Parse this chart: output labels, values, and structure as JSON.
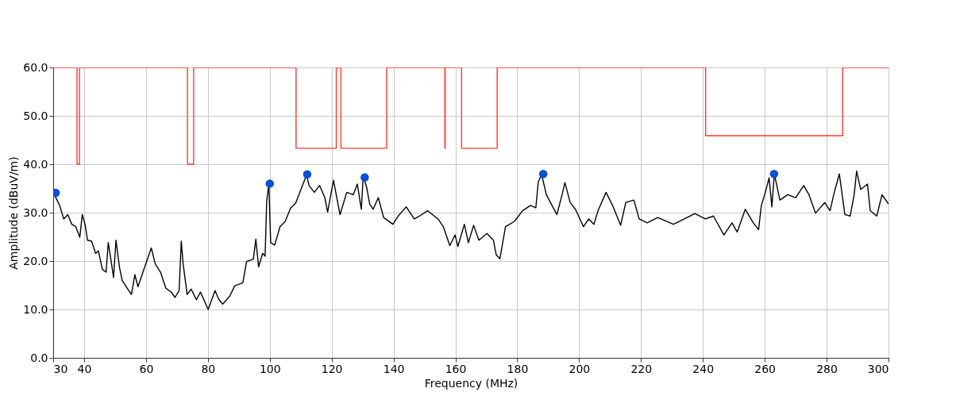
{
  "chart_data": {
    "type": "line",
    "xlabel": "Frequency (MHz)",
    "ylabel": "Amplitude (dBuV/m)",
    "xlim": [
      30,
      300
    ],
    "xticks": [
      30,
      40,
      60,
      80,
      100,
      120,
      140,
      160,
      180,
      200,
      220,
      240,
      260,
      280,
      300
    ],
    "ylim": [
      0,
      60
    ],
    "yticks": [
      {
        "value": 0,
        "label": "0.0"
      },
      {
        "value": 10,
        "label": "10.0"
      },
      {
        "value": 20,
        "label": "20.0"
      },
      {
        "value": 30,
        "label": "30.0"
      },
      {
        "value": 40,
        "label": "40.0"
      },
      {
        "value": 50,
        "label": "50.0"
      },
      {
        "value": 60,
        "label": "60.0"
      }
    ],
    "grid": true,
    "series": [
      {
        "color": "#000000",
        "marker": "none",
        "line_style": "solid",
        "x": [
          30,
          32.1,
          33.4,
          34.7,
          36,
          37.3,
          38.6,
          39.4,
          40.3,
          41.1,
          42.4,
          43.7,
          44.6,
          45.9,
          47.1,
          47.8,
          48.9,
          49.5,
          50.3,
          51.4,
          52.3,
          54.4,
          55.3,
          56.4,
          57.4,
          59.6,
          61.7,
          63,
          64.7,
          66.4,
          68.1,
          69.4,
          70.7,
          71.4,
          72,
          73.3,
          74.6,
          76.3,
          77.6,
          80.1,
          82.3,
          83.6,
          84.8,
          87,
          88.7,
          91.3,
          92.5,
          94.7,
          95.5,
          96.4,
          97.7,
          98.5,
          99,
          99.7,
          100.3,
          101.6,
          103.3,
          105,
          106.7,
          108.4,
          110.2,
          111.9,
          112.7,
          114.4,
          116.1,
          117.8,
          118.7,
          120.6,
          122.7,
          124.9,
          127,
          128.3,
          129.6,
          130.2,
          131.3,
          132.3,
          133.4,
          135.1,
          136.8,
          139.8,
          141.5,
          144.1,
          146.7,
          148.4,
          151,
          154.4,
          156.1,
          158.2,
          159.9,
          160.8,
          162.9,
          164.2,
          165.9,
          167.6,
          170.2,
          172.3,
          173.2,
          174.4,
          176.2,
          179.1,
          181.7,
          184.3,
          186,
          186.8,
          187.9,
          189.4,
          192.8,
          194.5,
          195.4,
          197.1,
          198.8,
          201.4,
          203.1,
          204.8,
          206.1,
          208.7,
          210.8,
          213.4,
          215.1,
          217.7,
          219.4,
          222,
          225.4,
          230.5,
          234,
          237.4,
          240.8,
          243.4,
          246.8,
          249.4,
          251.1,
          253.7,
          256.3,
          258,
          258.9,
          260.1,
          261.4,
          262.3,
          263.1,
          264.9,
          267.4,
          270,
          272.6,
          274.3,
          276.4,
          279.4,
          281.1,
          282.4,
          284.1,
          285.9,
          287.6,
          288.9,
          289.7,
          291,
          293.2,
          294.1,
          296.2,
          297.9,
          300
        ],
        "values": [
          34.2,
          31.5,
          28.7,
          29.6,
          27.6,
          27.1,
          24.9,
          29.6,
          27.6,
          24.3,
          24.1,
          21.6,
          22.1,
          18.3,
          17.7,
          23.8,
          19.3,
          16.6,
          24.3,
          18.8,
          16.0,
          13.9,
          13.1,
          17.2,
          14.7,
          18.8,
          22.7,
          19.4,
          17.7,
          14.4,
          13.6,
          12.5,
          13.9,
          24.1,
          19.4,
          13.1,
          14.2,
          12.0,
          13.6,
          10.0,
          13.9,
          12.0,
          11.1,
          12.7,
          14.9,
          15.5,
          19.9,
          20.4,
          24.5,
          18.8,
          21.6,
          21.0,
          32.3,
          35.9,
          23.8,
          23.3,
          27.1,
          28.2,
          30.9,
          32.0,
          35.0,
          37.8,
          35.6,
          34.2,
          35.6,
          33.1,
          30.1,
          36.7,
          29.6,
          34.2,
          33.7,
          35.9,
          30.7,
          37.5,
          35.3,
          31.8,
          30.7,
          33.1,
          29.0,
          27.6,
          29.3,
          31.2,
          28.7,
          29.3,
          30.4,
          28.7,
          27.1,
          23.2,
          25.4,
          23.0,
          27.6,
          23.8,
          27.4,
          24.3,
          25.7,
          24.3,
          21.3,
          20.5,
          27.1,
          28.2,
          30.4,
          31.5,
          31.0,
          36.4,
          37.8,
          33.7,
          29.6,
          33.7,
          36.2,
          32.1,
          30.7,
          27.1,
          28.7,
          27.6,
          30.4,
          34.2,
          31.5,
          27.4,
          32.1,
          32.6,
          28.7,
          27.9,
          29.0,
          27.6,
          28.7,
          29.8,
          28.7,
          29.3,
          25.4,
          27.9,
          26.0,
          30.7,
          27.9,
          26.5,
          31.5,
          34.0,
          37.2,
          31.2,
          38.0,
          32.6,
          33.7,
          33.1,
          35.6,
          33.7,
          29.9,
          32.1,
          30.4,
          34.0,
          38.0,
          29.6,
          29.3,
          33.7,
          38.6,
          34.8,
          35.9,
          30.4,
          29.3,
          33.7,
          31.8
        ]
      },
      {
        "type": "step",
        "color": "#ff3b2f",
        "marker": "none",
        "line_style": "solid",
        "x": [
          30,
          37.7,
          38.5,
          73.4,
          75.4,
          108.5,
          121.5,
          123.0,
          137.8,
          156.6,
          156.7,
          162.0,
          173.5,
          240.9,
          285.2,
          300
        ],
        "values": [
          60,
          40,
          60,
          40,
          60,
          43.3,
          60,
          43.3,
          60,
          43.3,
          60,
          43.3,
          60,
          45.9,
          60,
          60
        ]
      },
      {
        "type": "scatter",
        "color": "#0a4fd8",
        "marker": "circle",
        "x": [
          30.8,
          100.0,
          112.1,
          130.7,
          188.4,
          263.0
        ],
        "values": [
          34.1,
          36.0,
          37.9,
          37.3,
          38.0,
          38.0
        ]
      }
    ]
  }
}
